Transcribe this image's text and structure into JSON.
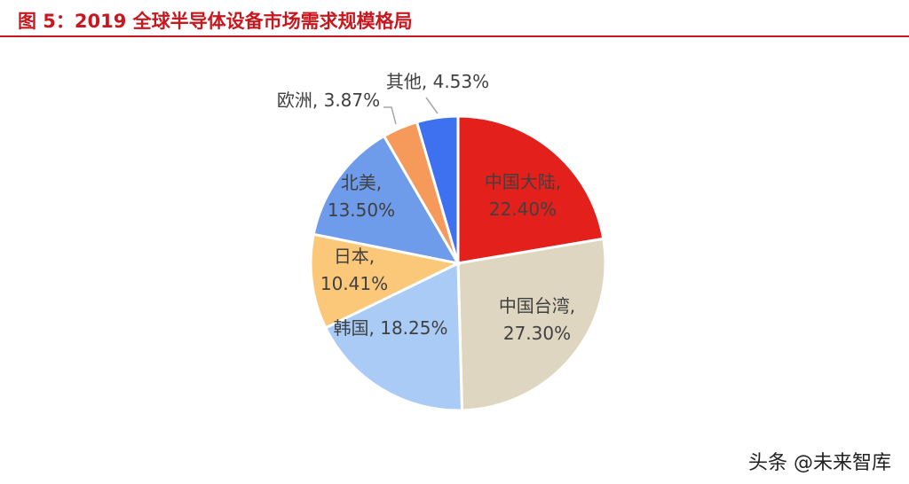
{
  "figure": {
    "title": "图 5：2019 全球半导体设备市场需求规模格局"
  },
  "chart_data": {
    "type": "pie",
    "title": "",
    "slices": [
      {
        "name": "中国大陆",
        "value": 22.4,
        "label": "22.40%",
        "color": "#e3201b"
      },
      {
        "name": "中国台湾",
        "value": 27.3,
        "label": "27.30%",
        "color": "#ded6c0"
      },
      {
        "name": "韩国",
        "value": 18.25,
        "label": "18.25%",
        "color": "#a9cbf6"
      },
      {
        "name": "日本",
        "value": 10.41,
        "label": "10.41%",
        "color": "#fbc879"
      },
      {
        "name": "北美",
        "value": 13.5,
        "label": "13.50%",
        "color": "#6f9cea"
      },
      {
        "name": "欧洲",
        "value": 3.87,
        "label": "3.87%",
        "color": "#f59a5a"
      },
      {
        "name": "其他",
        "value": 4.53,
        "label": "4.53%",
        "color": "#3d71f0"
      }
    ],
    "start": "12 o'clock",
    "direction": "clockwise",
    "legend": "none"
  },
  "watermark": "头条 @未来智库"
}
